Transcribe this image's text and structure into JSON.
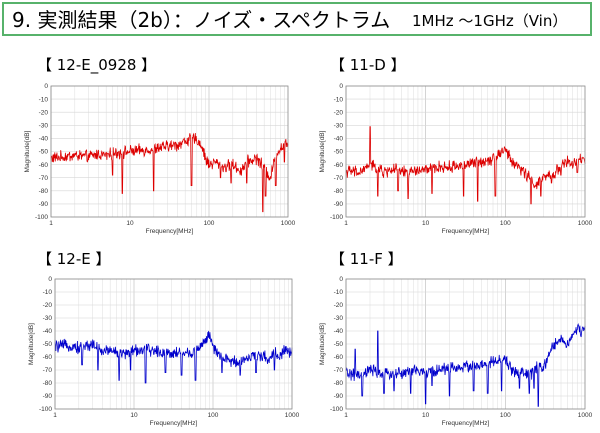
{
  "slide": {
    "title": "9. 実測結果（2b）：ノイズ・スペクトラム",
    "subtitle": "1MHz ～1GHz（Vin）"
  },
  "chart_data": [
    {
      "type": "line",
      "panel_label": "【 12-E_0928 】",
      "color": "#dd0000",
      "xlabel": "Frequency[MHz]",
      "ylabel": "Magnitude[dB]",
      "xscale": "log",
      "xlim": [
        1,
        1000
      ],
      "ylim": [
        -100,
        0
      ],
      "xticks": [
        1,
        10,
        100,
        1000
      ],
      "yticks": [
        0,
        -10,
        -20,
        -30,
        -40,
        -50,
        -60,
        -70,
        -80,
        -90,
        -100
      ],
      "grid": true,
      "series": [
        {
          "x": [
            1,
            1.5,
            2,
            3,
            4,
            5,
            7,
            10,
            15,
            20,
            30,
            40,
            50,
            60,
            70,
            80,
            90,
            100,
            120,
            150,
            200,
            250,
            300,
            400,
            500,
            600,
            700,
            800,
            900,
            1000
          ],
          "y": [
            -55,
            -54,
            -53,
            -54,
            -52,
            -53,
            -51,
            -50,
            -49,
            -48,
            -46,
            -45,
            -42,
            -40,
            -41,
            -45,
            -55,
            -60,
            -58,
            -62,
            -60,
            -65,
            -58,
            -55,
            -62,
            -70,
            -52,
            -48,
            -44,
            -45
          ]
        }
      ]
    },
    {
      "type": "line",
      "panel_label": "【 11-D 】",
      "color": "#dd0000",
      "xlabel": "Frequency[MHz]",
      "ylabel": "Magnitude[dB]",
      "xscale": "log",
      "xlim": [
        1,
        1000
      ],
      "ylim": [
        -100,
        0
      ],
      "xticks": [
        1,
        10,
        100,
        1000
      ],
      "yticks": [
        0,
        -10,
        -20,
        -30,
        -40,
        -50,
        -60,
        -70,
        -80,
        -90,
        -100
      ],
      "grid": true,
      "series": [
        {
          "x": [
            1,
            1.5,
            2,
            3,
            4,
            5,
            7,
            10,
            15,
            20,
            30,
            40,
            50,
            70,
            90,
            100,
            120,
            150,
            200,
            250,
            300,
            400,
            500,
            600,
            700,
            800,
            900,
            1000
          ],
          "y": [
            -65,
            -66,
            -60,
            -66,
            -63,
            -66,
            -65,
            -64,
            -62,
            -62,
            -60,
            -59,
            -58,
            -55,
            -50,
            -48,
            -58,
            -62,
            -70,
            -76,
            -70,
            -68,
            -60,
            -58,
            -60,
            -58,
            -56,
            -57
          ]
        }
      ]
    },
    {
      "type": "line",
      "panel_label": "【 12-E 】",
      "color": "#0000cc",
      "xlabel": "Frequency[MHz]",
      "ylabel": "Magnitude[dB]",
      "xscale": "log",
      "xlim": [
        1,
        1000
      ],
      "ylim": [
        -100,
        0
      ],
      "xticks": [
        1,
        10,
        100,
        1000
      ],
      "yticks": [
        0,
        -10,
        -20,
        -30,
        -40,
        -50,
        -60,
        -70,
        -80,
        -90,
        -100
      ],
      "grid": true,
      "series": [
        {
          "x": [
            1,
            1.5,
            2,
            3,
            4,
            5,
            7,
            10,
            15,
            20,
            30,
            40,
            50,
            70,
            80,
            90,
            100,
            120,
            150,
            200,
            250,
            300,
            400,
            500,
            600,
            700,
            800,
            900,
            1000
          ],
          "y": [
            -52,
            -51,
            -53,
            -50,
            -56,
            -54,
            -58,
            -55,
            -54,
            -56,
            -57,
            -56,
            -58,
            -52,
            -46,
            -44,
            -52,
            -60,
            -62,
            -64,
            -62,
            -60,
            -58,
            -62,
            -56,
            -60,
            -54,
            -56,
            -58
          ]
        }
      ]
    },
    {
      "type": "line",
      "panel_label": "【 11-F 】",
      "color": "#0000cc",
      "xlabel": "Frequency[MHz]",
      "ylabel": "Magnitude[dB]",
      "xscale": "log",
      "xlim": [
        1,
        1000
      ],
      "ylim": [
        -100,
        0
      ],
      "xticks": [
        1,
        10,
        100,
        1000
      ],
      "yticks": [
        0,
        -10,
        -20,
        -30,
        -40,
        -50,
        -60,
        -70,
        -80,
        -90,
        -100
      ],
      "grid": true,
      "series": [
        {
          "x": [
            1,
            1.5,
            2,
            3,
            4,
            5,
            7,
            10,
            15,
            20,
            30,
            40,
            50,
            70,
            100,
            120,
            150,
            200,
            250,
            300,
            350,
            400,
            450,
            500,
            600,
            700,
            800,
            900,
            1000
          ],
          "y": [
            -72,
            -75,
            -70,
            -74,
            -72,
            -73,
            -70,
            -72,
            -70,
            -68,
            -68,
            -66,
            -67,
            -64,
            -62,
            -70,
            -72,
            -74,
            -68,
            -70,
            -58,
            -52,
            -48,
            -46,
            -50,
            -44,
            -38,
            -40,
            -38
          ]
        }
      ]
    }
  ],
  "spikes": [
    [
      [
        6,
        -68
      ],
      [
        8,
        -82
      ],
      [
        20,
        -80
      ],
      [
        60,
        -76
      ],
      [
        140,
        -70
      ],
      [
        190,
        -74
      ],
      [
        300,
        -74
      ],
      [
        480,
        -96
      ],
      [
        520,
        -84
      ],
      [
        700,
        -76
      ],
      [
        900,
        -58
      ]
    ],
    [
      [
        2,
        -31
      ],
      [
        2.5,
        -84
      ],
      [
        4.5,
        -80
      ],
      [
        6,
        -86
      ],
      [
        12,
        -82
      ],
      [
        30,
        -84
      ],
      [
        45,
        -88
      ],
      [
        75,
        -84
      ],
      [
        210,
        -90
      ],
      [
        280,
        -84
      ],
      [
        380,
        -74
      ],
      [
        500,
        -68
      ],
      [
        800,
        -66
      ]
    ],
    [
      [
        2.2,
        -66
      ],
      [
        3.5,
        -70
      ],
      [
        6.5,
        -78
      ],
      [
        9,
        -70
      ],
      [
        14,
        -80
      ],
      [
        25,
        -72
      ],
      [
        40,
        -74
      ],
      [
        60,
        -78
      ],
      [
        130,
        -72
      ],
      [
        220,
        -74
      ],
      [
        350,
        -72
      ],
      [
        600,
        -70
      ]
    ],
    [
      [
        1.3,
        -54
      ],
      [
        1.6,
        -90
      ],
      [
        2.5,
        -40
      ],
      [
        3,
        -88
      ],
      [
        4,
        -86
      ],
      [
        6.5,
        -88
      ],
      [
        10,
        -96
      ],
      [
        12,
        -82
      ],
      [
        20,
        -90
      ],
      [
        40,
        -86
      ],
      [
        60,
        -88
      ],
      [
        90,
        -86
      ],
      [
        150,
        -84
      ],
      [
        200,
        -88
      ],
      [
        230,
        -84
      ],
      [
        260,
        -98
      ]
    ]
  ]
}
